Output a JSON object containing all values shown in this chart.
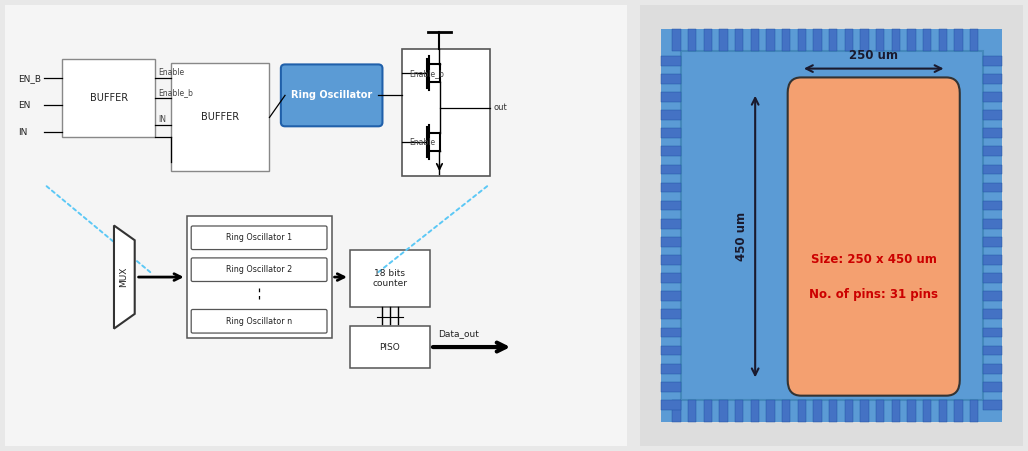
{
  "bg_color": "#e8e8e8",
  "left_panel_bg": "#f5f5f5",
  "right_panel_bg": "#5b9bd5",
  "chip_inner_color": "#5b9bd5",
  "chip_color": "#f4a070",
  "pin_color": "#4472c4",
  "pin_dark": "#1a50a0",
  "text_red": "#cc0000",
  "text_dark": "#1a1a2e",
  "dashed_color": "#5bc8f5",
  "ring_osc_fill": "#5b9bd5",
  "box_edge": "#555555",
  "width_label": "250 um",
  "height_label": "450 um",
  "size_text": "Size: 250 x 450 um",
  "pins_text": "No. of pins: 31 pins"
}
